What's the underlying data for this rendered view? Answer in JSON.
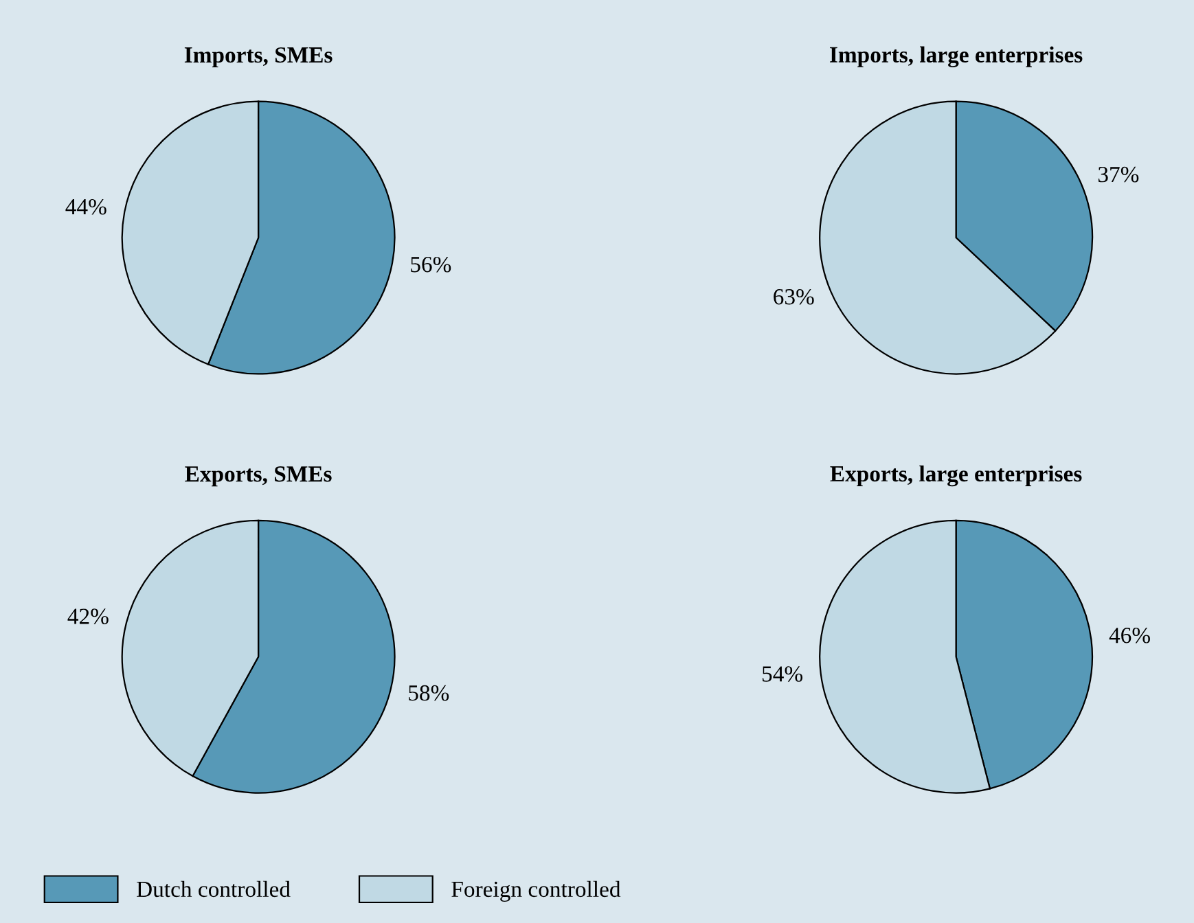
{
  "chart_data": [
    {
      "type": "pie",
      "title": "Imports, SMEs",
      "categories": [
        "Dutch controlled",
        "Foreign controlled"
      ],
      "values": [
        56,
        44
      ],
      "value_labels": [
        "56%",
        "44%"
      ],
      "colors": [
        "#5799b7",
        "#c0d9e4"
      ],
      "legend": "bottom right"
    },
    {
      "type": "pie",
      "title": "Imports, large enterprises",
      "categories": [
        null,
        null
      ],
      "values": [
        37,
        63
      ],
      "value_labels": [
        "37%",
        "63%"
      ],
      "colors": [
        "#5799b7",
        "#c0d9e4"
      ]
    },
    {
      "type": "pie",
      "title": "Exports, SMEs",
      "categories": [
        null,
        null
      ],
      "values": [
        58,
        42
      ],
      "value_labels": [
        "58%",
        "42%"
      ],
      "colors": [
        "#5799b7",
        "#c0d9e4"
      ]
    },
    {
      "type": "pie",
      "title": "Exports, large enterprises",
      "categories": [
        null,
        null
      ],
      "values": [
        46,
        54
      ],
      "value_labels": [
        "46%",
        "54%"
      ],
      "colors": [
        "#5799b7",
        "#c0d9e4"
      ]
    }
  ]
}
